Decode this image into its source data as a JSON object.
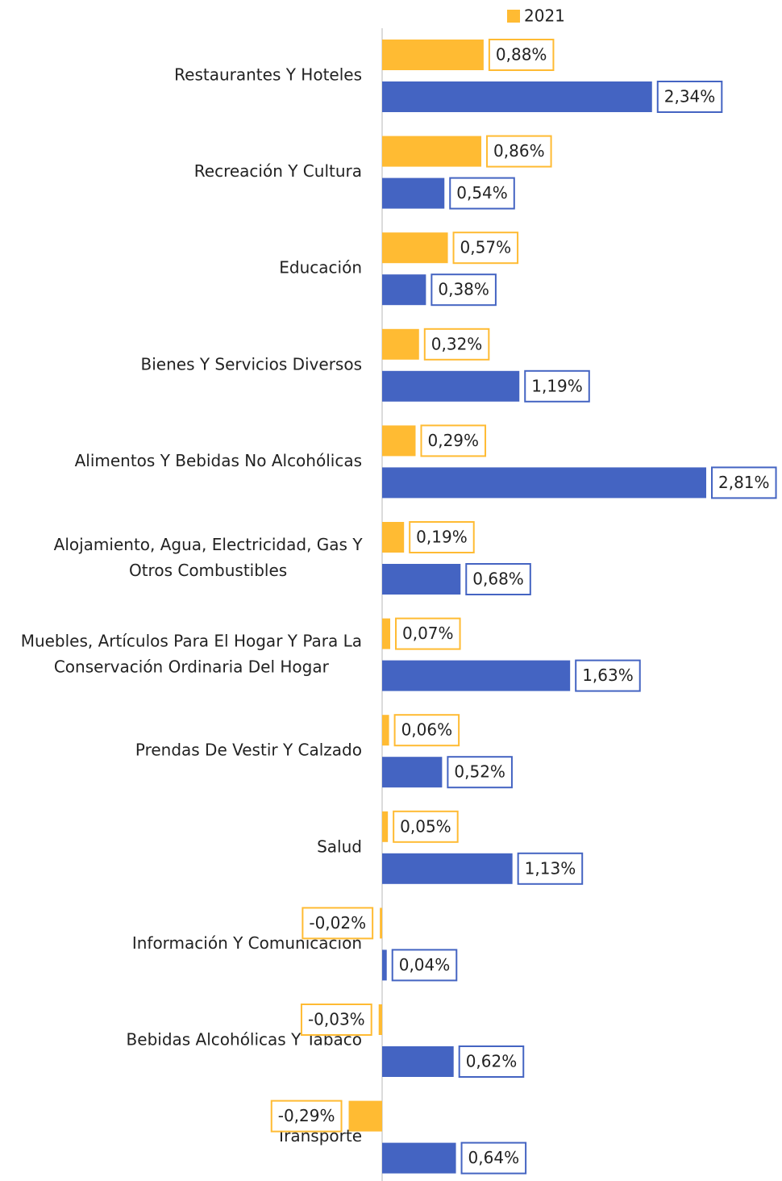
{
  "chart_data": {
    "type": "bar",
    "orientation": "horizontal",
    "categories": [
      "Restaurantes Y Hoteles",
      "Recreación Y Cultura",
      "Educación",
      "Bienes Y Servicios Diversos",
      "Alimentos Y Bebidas No Alcohólicas",
      "Alojamiento, Agua, Electricidad, Gas Y Otros Combustibles",
      "Muebles, Artículos Para El Hogar Y Para La Conservación Ordinaria Del Hogar",
      "Prendas De Vestir Y Calzado",
      "Salud",
      "Información Y Comunicación",
      "Bebidas Alcohólicas Y Tabaco",
      "Transporte"
    ],
    "series": [
      {
        "name": "2021",
        "color": "#ffbb33",
        "values": [
          0.88,
          0.86,
          0.57,
          0.32,
          0.29,
          0.19,
          0.07,
          0.06,
          0.05,
          -0.02,
          -0.03,
          -0.29
        ],
        "value_labels": [
          "0,88%",
          "0,86%",
          "0,57%",
          "0,32%",
          "0,29%",
          "0,19%",
          "0,07%",
          "0,06%",
          "0,05%",
          "-0,02%",
          "-0,03%",
          "-0,29%"
        ]
      },
      {
        "color": "#4464c2",
        "values": [
          2.34,
          0.54,
          0.38,
          1.19,
          2.81,
          0.68,
          1.63,
          0.52,
          1.13,
          0.04,
          0.62,
          0.64
        ],
        "value_labels": [
          "2,34%",
          "0,54%",
          "0,38%",
          "1,19%",
          "2,81%",
          "0,68%",
          "1,63%",
          "0,52%",
          "1,13%",
          "0,04%",
          "0,62%",
          "0,64%"
        ]
      }
    ],
    "legend": "top"
  }
}
